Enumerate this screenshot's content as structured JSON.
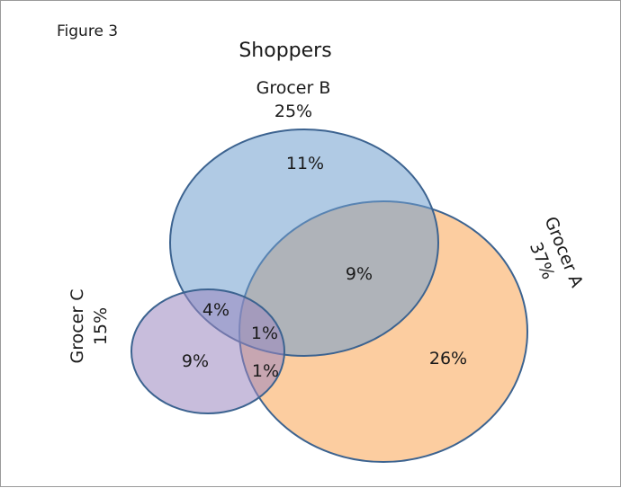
{
  "figure_label": "Figure 3",
  "title": "Shoppers",
  "colors": {
    "grocer_a_fill": "#fbbf85",
    "grocer_b_fill": "#6f9fce",
    "grocer_c_fill": "#9b86c0",
    "outline": "#3c6390"
  },
  "sets": {
    "grocer_a": {
      "name": "Grocer A",
      "total": "37%"
    },
    "grocer_b": {
      "name": "Grocer B",
      "total": "25%"
    },
    "grocer_c": {
      "name": "Grocer C",
      "total": "15%"
    }
  },
  "regions": {
    "b_only": "11%",
    "a_and_b": "9%",
    "a_only": "26%",
    "b_and_c": "4%",
    "a_b_c": "1%",
    "c_only": "9%",
    "a_and_c": "1%"
  }
}
